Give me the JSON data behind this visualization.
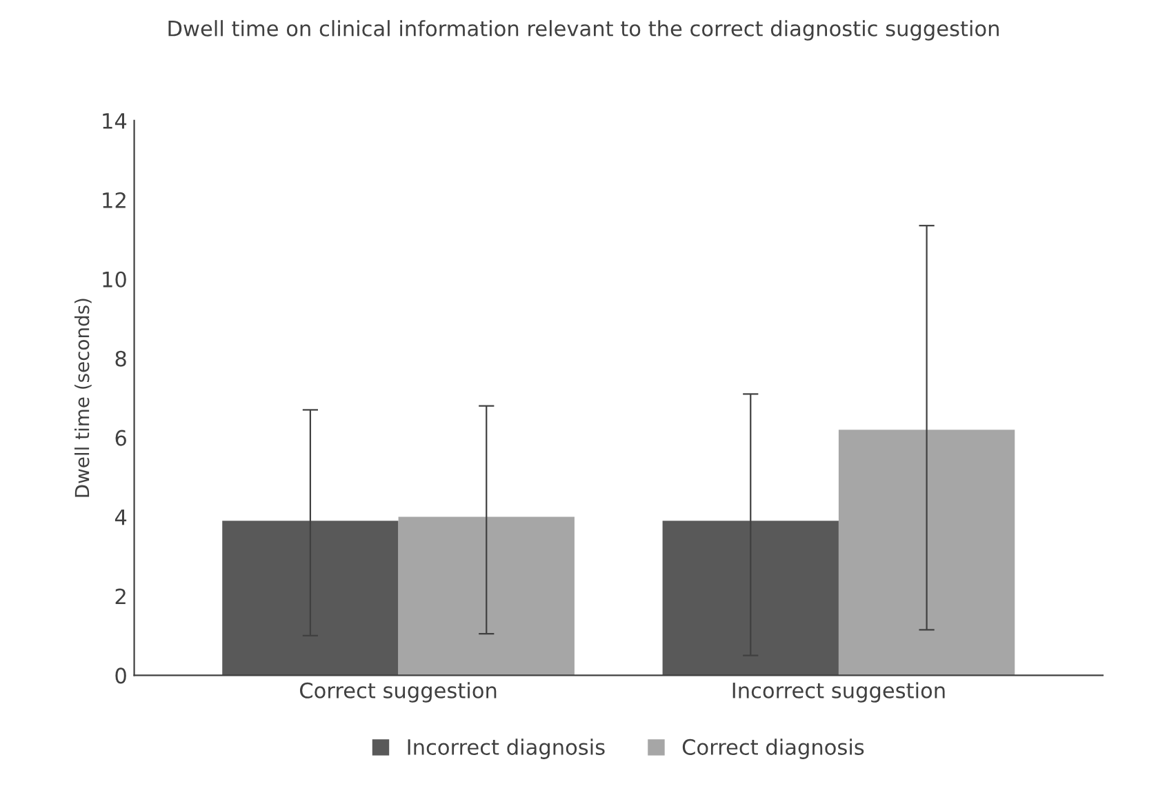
{
  "chart_data": {
    "type": "bar",
    "title": "Dwell time on clinical information relevant to the correct diagnostic suggestion",
    "ylabel": "Dwell time (seconds)",
    "categories": [
      "Correct suggestion",
      "Incorrect suggestion"
    ],
    "series": [
      {
        "name": "Incorrect diagnosis",
        "color": "#595959",
        "values": [
          3.9,
          3.9
        ],
        "errors": [
          [
            1.0,
            6.7
          ],
          [
            0.5,
            7.1
          ]
        ]
      },
      {
        "name": "Correct diagnosis",
        "color": "#a6a6a6",
        "values": [
          4.0,
          6.2
        ],
        "errors": [
          [
            1.05,
            6.8
          ],
          [
            1.15,
            11.35
          ]
        ]
      }
    ],
    "ylim": [
      0,
      14
    ],
    "yticks": [
      0,
      2,
      4,
      6,
      8,
      10,
      12,
      14
    ],
    "grid": false,
    "legend": "bottom"
  }
}
